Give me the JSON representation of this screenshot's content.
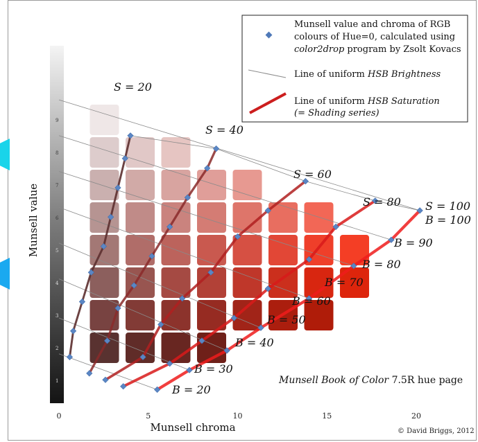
{
  "chart_data": {
    "type": "scatter",
    "xlabel": "Munsell chroma",
    "ylabel": "Munsell value",
    "xlim": [
      0,
      23
    ],
    "ylim": [
      0,
      10
    ],
    "x_ticks": [
      0,
      5,
      10,
      15,
      20
    ],
    "value_strip_labels": [
      "1",
      "2",
      "3",
      "4",
      "5",
      "6",
      "7",
      "8",
      "9"
    ],
    "legend": {
      "placement": "top-right",
      "entries": [
        {
          "kind": "marker",
          "lines": [
            "Munsell value and chroma of RGB",
            "colours of Hue=0, calculated using",
            "color2drop program by Zsolt Kovacs"
          ]
        },
        {
          "kind": "thin-line",
          "lines": [
            "Line of uniform HSB Brightness"
          ]
        },
        {
          "kind": "thick-line",
          "lines": [
            "Line of uniform HSB Saturation",
            "(= Shading series)"
          ]
        }
      ]
    },
    "annotation": "Munsell Book of Color 7.5R hue page",
    "credit": "© David Briggs, 2012",
    "saturation_labels": [
      "S = 20",
      "S = 40",
      "S = 60",
      "S = 80",
      "S = 100"
    ],
    "brightness_labels": [
      "B = 100",
      "B = 90",
      "B = 80",
      "B = 70",
      "B = 60",
      "B = 50",
      "B = 40",
      "B = 30",
      "B = 20"
    ],
    "points": [
      {
        "x": 0.6,
        "y": 1.8
      },
      {
        "x": 1.7,
        "y": 1.3
      },
      {
        "x": 2.6,
        "y": 1.1
      },
      {
        "x": 3.6,
        "y": 0.9
      },
      {
        "x": 5.5,
        "y": 0.8
      },
      {
        "x": 0.8,
        "y": 2.6
      },
      {
        "x": 2.7,
        "y": 2.3
      },
      {
        "x": 4.7,
        "y": 1.8
      },
      {
        "x": 6.2,
        "y": 1.6
      },
      {
        "x": 7.3,
        "y": 1.4
      },
      {
        "x": 1.3,
        "y": 3.5
      },
      {
        "x": 3.3,
        "y": 3.3
      },
      {
        "x": 5.7,
        "y": 2.8
      },
      {
        "x": 8.0,
        "y": 2.3
      },
      {
        "x": 9.4,
        "y": 2.0
      },
      {
        "x": 1.8,
        "y": 4.4
      },
      {
        "x": 4.2,
        "y": 4.0
      },
      {
        "x": 6.9,
        "y": 3.6
      },
      {
        "x": 9.8,
        "y": 3.0
      },
      {
        "x": 11.3,
        "y": 2.7
      },
      {
        "x": 2.5,
        "y": 5.2
      },
      {
        "x": 5.2,
        "y": 4.9
      },
      {
        "x": 8.5,
        "y": 4.4
      },
      {
        "x": 11.7,
        "y": 3.9
      },
      {
        "x": 14.0,
        "y": 3.6
      },
      {
        "x": 2.9,
        "y": 6.1
      },
      {
        "x": 6.2,
        "y": 5.8
      },
      {
        "x": 10.0,
        "y": 5.5
      },
      {
        "x": 14.0,
        "y": 4.8
      },
      {
        "x": 16.5,
        "y": 4.6
      },
      {
        "x": 3.3,
        "y": 7.0
      },
      {
        "x": 7.2,
        "y": 6.7
      },
      {
        "x": 11.7,
        "y": 6.3
      },
      {
        "x": 15.5,
        "y": 5.8
      },
      {
        "x": 18.6,
        "y": 5.4
      },
      {
        "x": 3.7,
        "y": 7.9
      },
      {
        "x": 8.3,
        "y": 7.6
      },
      {
        "x": 13.8,
        "y": 7.2
      },
      {
        "x": 17.7,
        "y": 6.6
      },
      {
        "x": 20.2,
        "y": 6.3
      },
      {
        "x": 4.0,
        "y": 8.6
      },
      {
        "x": 8.8,
        "y": 8.2
      }
    ],
    "series": [
      {
        "name": "S = 20",
        "color": "#5a2a2a",
        "x": [
          0.6,
          0.8,
          1.3,
          1.8,
          2.5,
          2.9,
          3.3,
          3.7,
          4.0
        ],
        "y": [
          1.8,
          2.6,
          3.5,
          4.4,
          5.2,
          6.1,
          7.0,
          7.9,
          8.6
        ]
      },
      {
        "name": "S = 40",
        "color": "#8a2a2a",
        "x": [
          1.7,
          2.7,
          3.3,
          4.2,
          5.2,
          6.2,
          7.2,
          8.3,
          8.8
        ],
        "y": [
          1.3,
          2.3,
          3.3,
          4.0,
          4.9,
          5.8,
          6.7,
          7.6,
          8.2
        ]
      },
      {
        "name": "S = 60",
        "color": "#b02020",
        "x": [
          2.6,
          4.7,
          5.7,
          6.9,
          8.5,
          10.0,
          11.7,
          13.8
        ],
        "y": [
          1.1,
          1.8,
          2.8,
          3.6,
          4.4,
          5.5,
          6.3,
          7.2
        ]
      },
      {
        "name": "S = 80",
        "color": "#d81a1a",
        "x": [
          3.6,
          6.2,
          8.0,
          9.8,
          11.7,
          14.0,
          15.5,
          17.7
        ],
        "y": [
          0.9,
          1.6,
          2.3,
          3.0,
          3.9,
          4.8,
          5.8,
          6.6
        ]
      },
      {
        "name": "S = 100",
        "color": "#ee1c1c",
        "x": [
          5.5,
          7.3,
          9.4,
          11.3,
          14.0,
          16.5,
          18.6,
          20.2
        ],
        "y": [
          0.8,
          1.4,
          2.0,
          2.7,
          3.6,
          4.6,
          5.4,
          6.3
        ]
      }
    ]
  }
}
